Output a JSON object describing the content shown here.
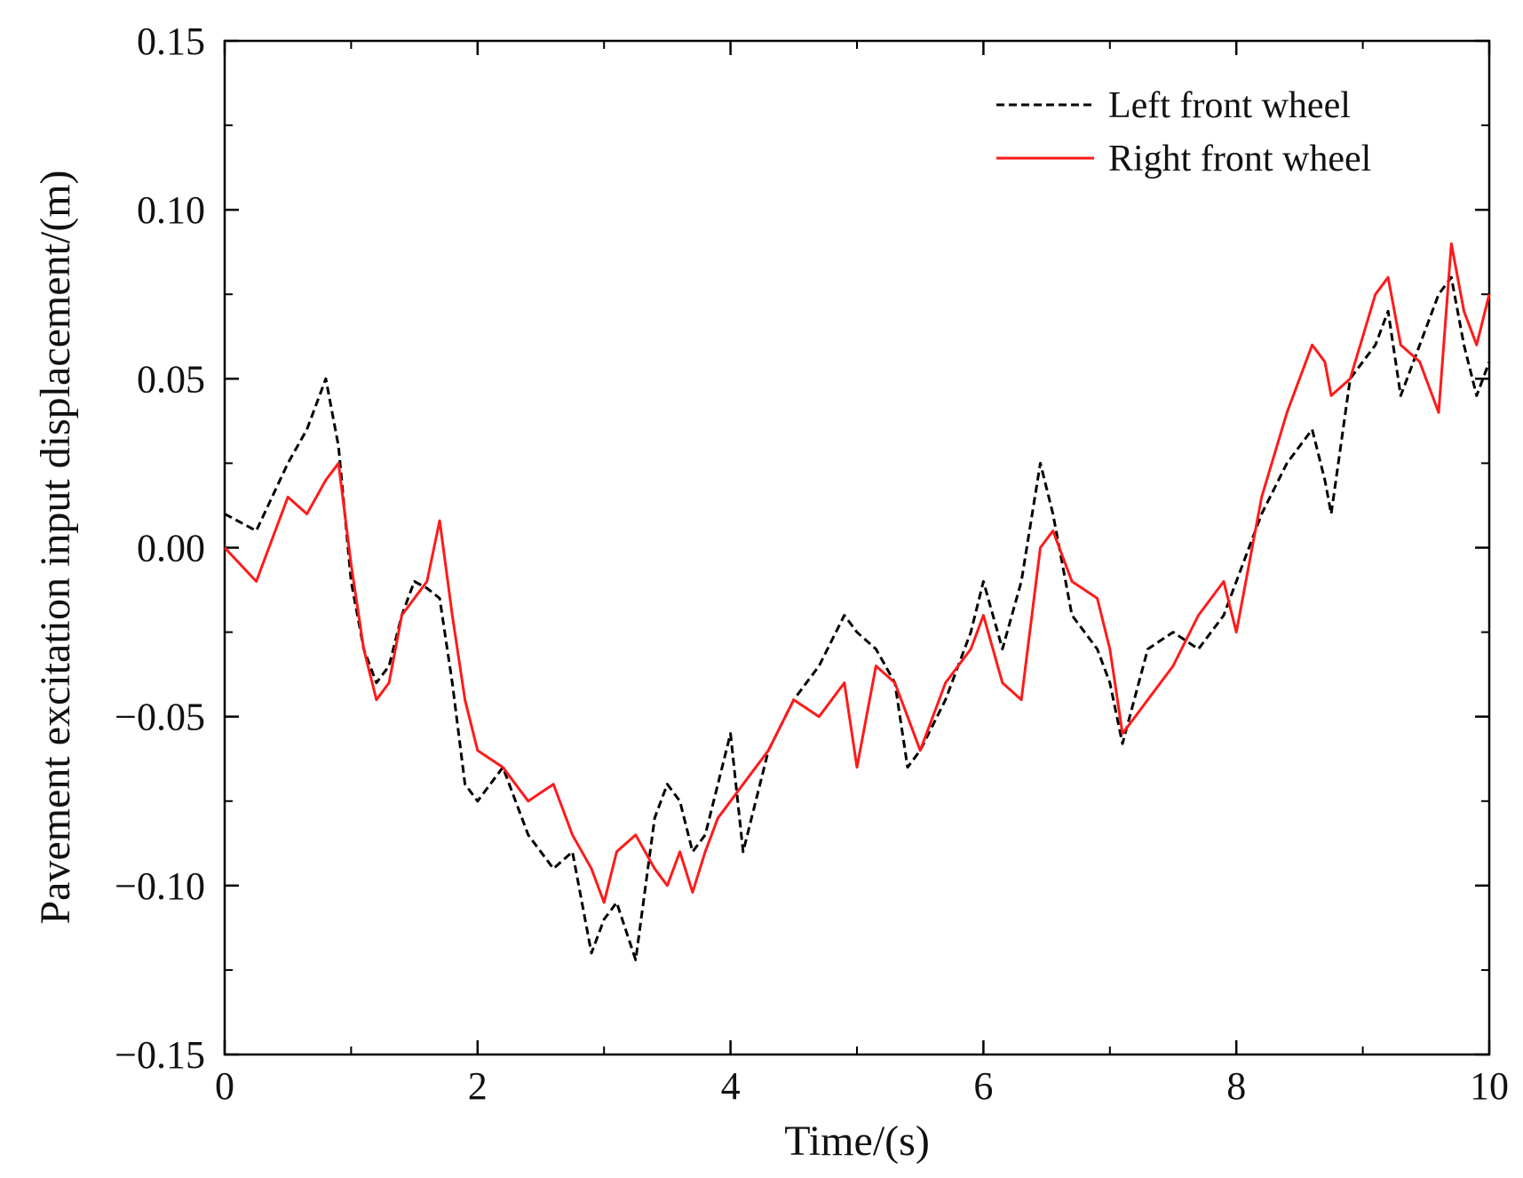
{
  "chart_data": {
    "type": "line",
    "title": "",
    "xlabel": "Time/(s)",
    "ylabel": "Pavement excitation input displacement/(m)",
    "xlim": [
      0,
      10
    ],
    "ylim": [
      -0.15,
      0.15
    ],
    "x_ticks": [
      0,
      2,
      4,
      6,
      8,
      10
    ],
    "x_tick_labels": [
      "0",
      "2",
      "4",
      "6",
      "8",
      "10"
    ],
    "y_ticks": [
      0.15,
      0.1,
      0.05,
      0.0,
      -0.05,
      -0.1,
      -0.15
    ],
    "y_tick_labels": [
      "0.15",
      "0.10",
      "0.05",
      "0.00",
      "−0.05",
      "−0.10",
      "−0.15"
    ],
    "grid": false,
    "legend_position": "top-right",
    "x": [
      0,
      0.25,
      0.5,
      0.65,
      0.8,
      0.9,
      1.0,
      1.1,
      1.2,
      1.3,
      1.4,
      1.5,
      1.6,
      1.7,
      1.8,
      1.9,
      2.0,
      2.2,
      2.4,
      2.6,
      2.75,
      2.9,
      3.0,
      3.1,
      3.25,
      3.4,
      3.5,
      3.6,
      3.7,
      3.8,
      3.9,
      4.0,
      4.1,
      4.3,
      4.5,
      4.7,
      4.9,
      5.0,
      5.15,
      5.3,
      5.4,
      5.5,
      5.7,
      5.9,
      6.0,
      6.15,
      6.3,
      6.45,
      6.55,
      6.7,
      6.9,
      7.0,
      7.1,
      7.3,
      7.5,
      7.7,
      7.9,
      8.0,
      8.2,
      8.4,
      8.6,
      8.7,
      8.75,
      8.9,
      9.1,
      9.2,
      9.3,
      9.45,
      9.6,
      9.7,
      9.8,
      9.9,
      10.0
    ],
    "series": [
      {
        "name": "Left front wheel",
        "color": "#000000",
        "style": "dashed",
        "values": [
          0.01,
          0.005,
          0.025,
          0.035,
          0.05,
          0.03,
          -0.01,
          -0.03,
          -0.04,
          -0.035,
          -0.02,
          -0.01,
          -0.012,
          -0.015,
          -0.04,
          -0.07,
          -0.075,
          -0.065,
          -0.085,
          -0.095,
          -0.09,
          -0.12,
          -0.11,
          -0.105,
          -0.122,
          -0.08,
          -0.07,
          -0.075,
          -0.09,
          -0.085,
          -0.07,
          -0.055,
          -0.09,
          -0.06,
          -0.045,
          -0.035,
          -0.02,
          -0.025,
          -0.03,
          -0.04,
          -0.065,
          -0.06,
          -0.045,
          -0.025,
          -0.01,
          -0.03,
          -0.01,
          0.025,
          0.01,
          -0.02,
          -0.03,
          -0.04,
          -0.058,
          -0.03,
          -0.025,
          -0.03,
          -0.02,
          -0.01,
          0.01,
          0.025,
          0.035,
          0.02,
          0.01,
          0.05,
          0.06,
          0.07,
          0.045,
          0.06,
          0.075,
          0.08,
          0.06,
          0.045,
          0.055
        ]
      },
      {
        "name": "Right front wheel",
        "color": "#ff1a1a",
        "style": "solid",
        "values": [
          0.0,
          -0.01,
          0.015,
          0.01,
          0.02,
          0.025,
          -0.005,
          -0.03,
          -0.045,
          -0.04,
          -0.02,
          -0.015,
          -0.01,
          0.008,
          -0.02,
          -0.045,
          -0.06,
          -0.065,
          -0.075,
          -0.07,
          -0.085,
          -0.095,
          -0.105,
          -0.09,
          -0.085,
          -0.095,
          -0.1,
          -0.09,
          -0.102,
          -0.09,
          -0.08,
          -0.075,
          -0.07,
          -0.06,
          -0.045,
          -0.05,
          -0.04,
          -0.065,
          -0.035,
          -0.04,
          -0.05,
          -0.06,
          -0.04,
          -0.03,
          -0.02,
          -0.04,
          -0.045,
          0.0,
          0.005,
          -0.01,
          -0.015,
          -0.03,
          -0.055,
          -0.045,
          -0.035,
          -0.02,
          -0.01,
          -0.025,
          0.015,
          0.04,
          0.06,
          0.055,
          0.045,
          0.05,
          0.075,
          0.08,
          0.06,
          0.055,
          0.04,
          0.09,
          0.07,
          0.06,
          0.075
        ]
      }
    ]
  }
}
